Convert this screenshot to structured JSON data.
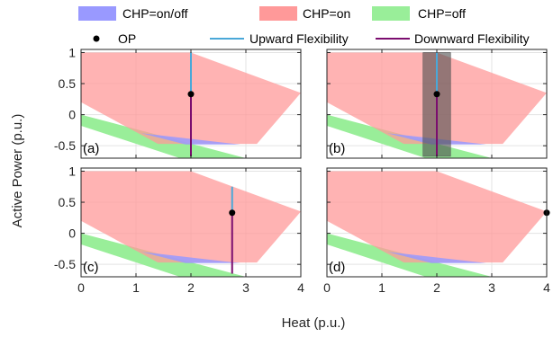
{
  "chart_data": {
    "type": "area",
    "xlabel": "Heat (p.u.)",
    "ylabel": "Active Power (p.u.)",
    "xlim": [
      0,
      4
    ],
    "ylim": [
      -0.7,
      1.05
    ],
    "xticks": [
      "0",
      "1",
      "2",
      "3",
      "4"
    ],
    "yticks": [
      "1",
      "0.5",
      "0",
      "-0.5"
    ],
    "grid": true,
    "legend": {
      "placement": "top",
      "entries": [
        {
          "label": "CHP=on/off",
          "color": "#9999ff",
          "kind": "patch"
        },
        {
          "label": "CHP=on",
          "color": "#ff9999",
          "kind": "patch"
        },
        {
          "label": "CHP=off",
          "color": "#99ee99",
          "kind": "patch"
        },
        {
          "label": "OP",
          "color": "#000000",
          "kind": "marker"
        },
        {
          "label": "Upward Flexibility",
          "color": "#4aa8d8",
          "kind": "line"
        },
        {
          "label": "Downward Flexibility",
          "color": "#7b0d6f",
          "kind": "line"
        }
      ]
    },
    "regions": {
      "chp_on": [
        [
          0,
          1.0
        ],
        [
          2,
          1.0
        ],
        [
          4,
          0.35
        ],
        [
          3.2,
          -0.47
        ],
        [
          1.4,
          -0.47
        ],
        [
          0,
          0.2
        ]
      ],
      "chp_off": [
        [
          0,
          0.0
        ],
        [
          3.0,
          -0.7
        ],
        [
          1.8,
          -0.7
        ],
        [
          0,
          -0.18
        ]
      ],
      "chp_on_off": [
        [
          1.1,
          -0.3
        ],
        [
          1.9,
          -0.48
        ],
        [
          2.9,
          -0.48
        ]
      ]
    },
    "panels": [
      {
        "label": "(a)",
        "op": [
          2.0,
          0.33
        ],
        "up_to": 1.0,
        "down_to": -0.67,
        "band": null
      },
      {
        "label": "(b)",
        "op": [
          2.0,
          0.33
        ],
        "up_to": 1.0,
        "down_to": -0.67,
        "band": [
          1.75,
          2.25
        ]
      },
      {
        "label": "(c)",
        "op": [
          2.75,
          0.33
        ],
        "up_to": 0.75,
        "down_to": -0.65,
        "band": null
      },
      {
        "label": "(d)",
        "op": [
          4.0,
          0.33
        ],
        "up_to": null,
        "down_to": null,
        "band": null
      }
    ]
  }
}
